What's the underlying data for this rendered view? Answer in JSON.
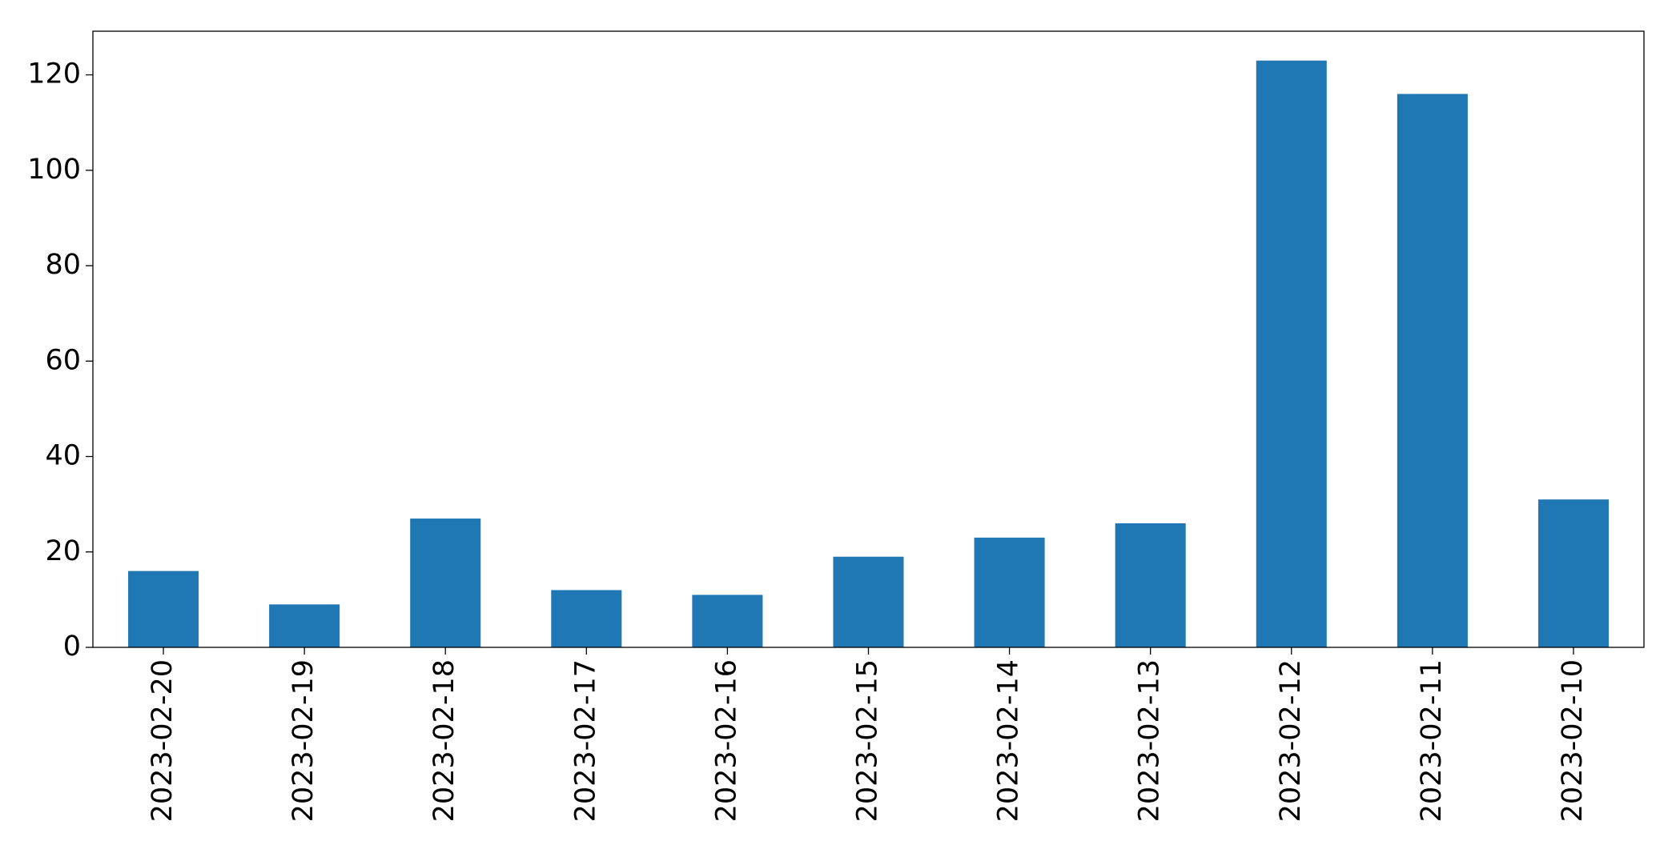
{
  "chart_data": {
    "type": "bar",
    "categories": [
      "2023-02-20",
      "2023-02-19",
      "2023-02-18",
      "2023-02-17",
      "2023-02-16",
      "2023-02-15",
      "2023-02-14",
      "2023-02-13",
      "2023-02-12",
      "2023-02-11",
      "2023-02-10"
    ],
    "values": [
      16,
      9,
      27,
      12,
      11,
      19,
      23,
      26,
      123,
      116,
      31
    ],
    "color": "#1f77b4",
    "ylim": [
      0,
      129.15
    ],
    "yticks": [
      0,
      20,
      40,
      60,
      80,
      100,
      120
    ],
    "grid": false
  }
}
